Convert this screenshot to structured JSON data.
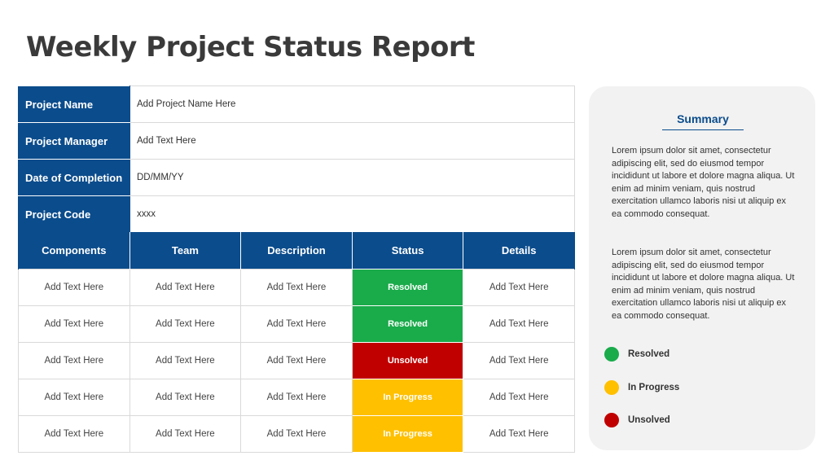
{
  "title": "Weekly Project Status Report",
  "info_rows": [
    {
      "label": "Project Name",
      "value": "Add Project Name Here"
    },
    {
      "label": "Project Manager",
      "value": "Add Text Here"
    },
    {
      "label": "Date of Completion",
      "value": "DD/MM/YY"
    },
    {
      "label": "Project Code",
      "value": "xxxx"
    }
  ],
  "table": {
    "headers": [
      "Components",
      "Team",
      "Description",
      "Status",
      "Details"
    ],
    "rows": [
      {
        "components": "Add Text Here",
        "team": "Add Text Here",
        "description": "Add Text Here",
        "status": "Resolved",
        "details": "Add Text Here"
      },
      {
        "components": "Add Text Here",
        "team": "Add Text Here",
        "description": "Add Text Here",
        "status": "Resolved",
        "details": "Add Text Here"
      },
      {
        "components": "Add Text Here",
        "team": "Add Text Here",
        "description": "Add Text Here",
        "status": "Unsolved",
        "details": "Add Text Here"
      },
      {
        "components": "Add Text Here",
        "team": "Add Text Here",
        "description": "Add Text Here",
        "status": "In Progress",
        "details": "Add Text Here"
      },
      {
        "components": "Add Text Here",
        "team": "Add Text Here",
        "description": "Add Text Here",
        "status": "In Progress",
        "details": "Add Text Here"
      }
    ]
  },
  "summary": {
    "title": "Summary",
    "paragraphs": [
      "Lorem ipsum dolor sit amet, consectetur adipiscing elit, sed do eiusmod tempor incididunt ut labore et dolore magna aliqua. Ut enim ad minim veniam, quis nostrud exercitation ullamco laboris nisi ut aliquip ex ea commodo  consequat.",
      "Lorem ipsum dolor sit amet, consectetur adipiscing elit, sed do eiusmod tempor incididunt ut labore et dolore magna aliqua. Ut enim ad minim veniam, quis nostrud exercitation ullamco laboris nisi ut aliquip ex ea commodo  consequat."
    ]
  },
  "legend": [
    {
      "label": "Resolved",
      "color": "#1aab4b"
    },
    {
      "label": "In Progress",
      "color": "#ffc000"
    },
    {
      "label": "Unsolved",
      "color": "#c00000"
    }
  ],
  "status_colors": {
    "Resolved": "#1aab4b",
    "In Progress": "#ffc000",
    "Unsolved": "#c00000"
  },
  "colors": {
    "header_blue": "#0b4c8c",
    "panel_gray": "#f2f2f2"
  }
}
